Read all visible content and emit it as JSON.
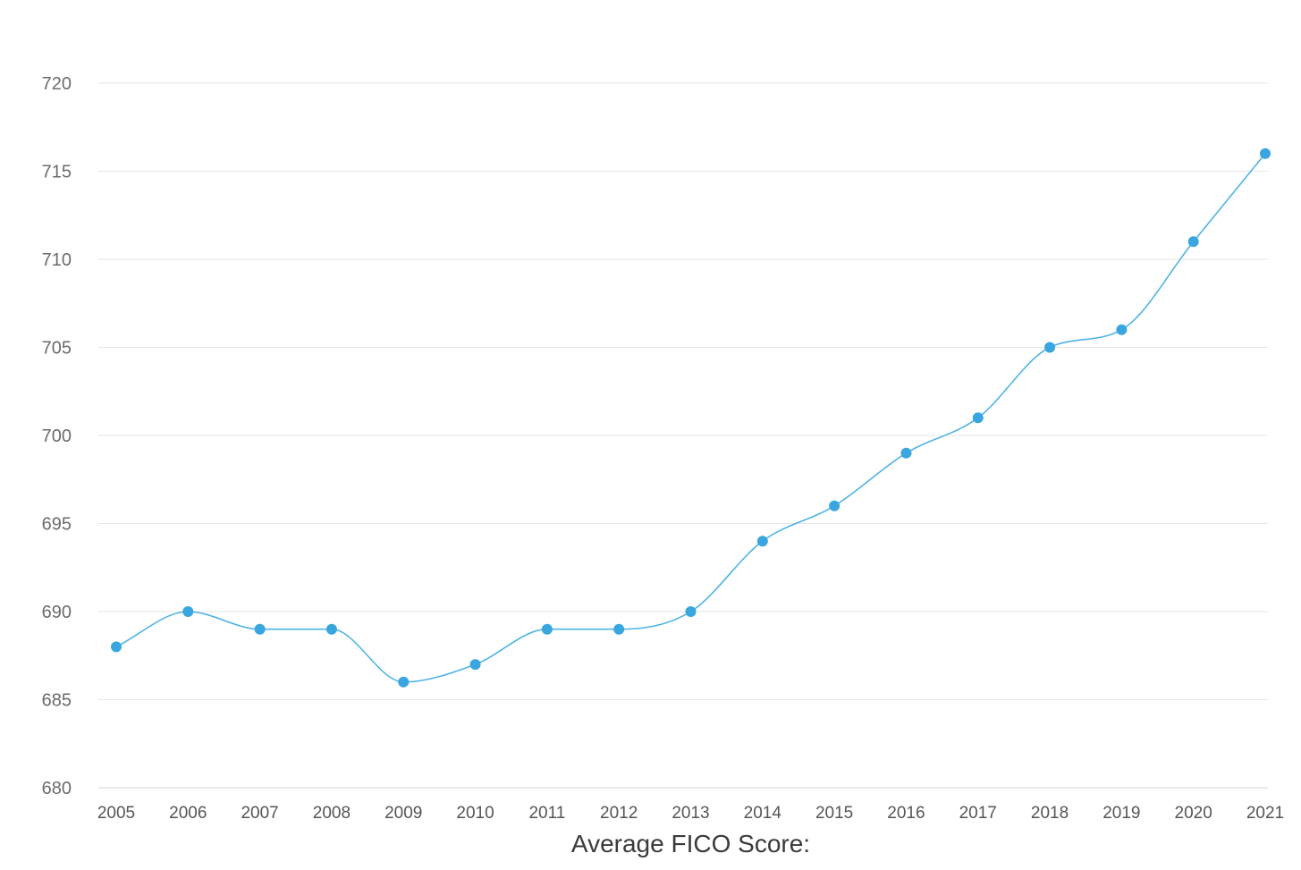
{
  "chart_data": {
    "type": "line",
    "xlabel": "Average FICO Score:",
    "ylabel": "",
    "x": [
      "2005",
      "2006",
      "2007",
      "2008",
      "2009",
      "2010",
      "2011",
      "2012",
      "2013",
      "2014",
      "2015",
      "2016",
      "2017",
      "2018",
      "2019",
      "2020",
      "2021"
    ],
    "series": [
      {
        "values": [
          688,
          690,
          689,
          689,
          686,
          687,
          689,
          689,
          690,
          694,
          696,
          699,
          701,
          705,
          706,
          711,
          716
        ]
      }
    ],
    "ylim": [
      680,
      720
    ],
    "yticks": [
      "680",
      "685",
      "690",
      "695",
      "700",
      "705",
      "710",
      "715",
      "720"
    ],
    "grid": true,
    "legend": "none",
    "line_color": "#4fb3e6",
    "point_color": "#3aa6e0"
  }
}
